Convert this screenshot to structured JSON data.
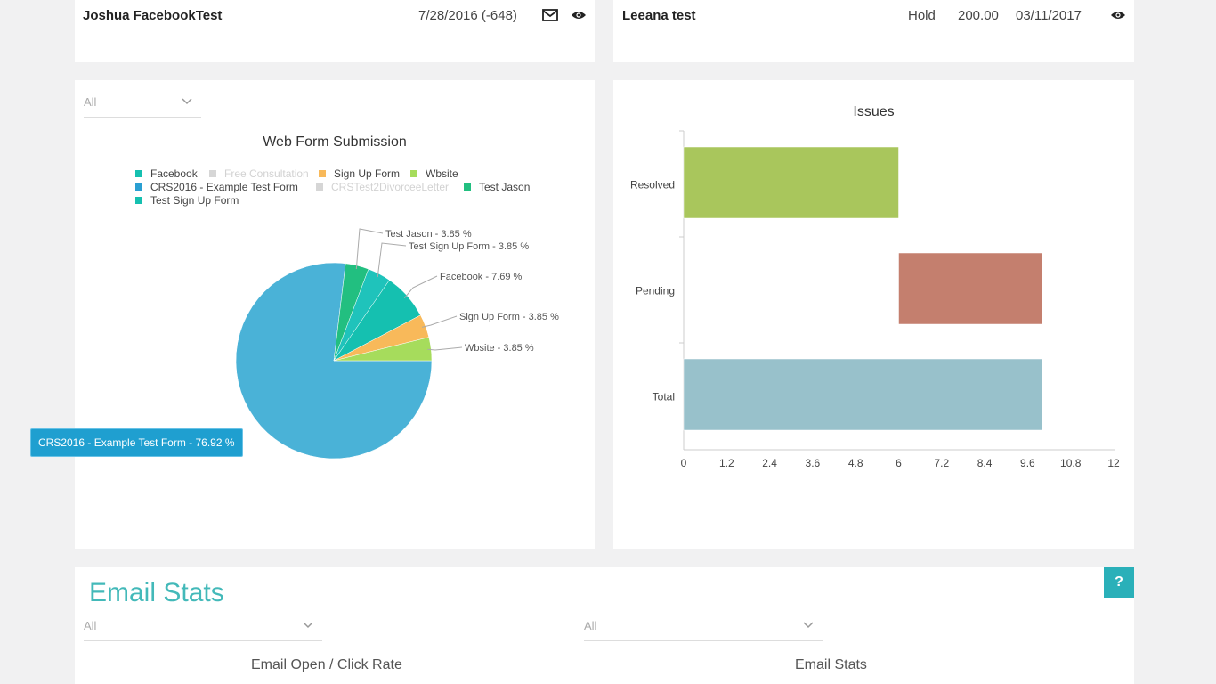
{
  "top_rows": {
    "left": {
      "name": "Joshua FacebookTest",
      "date": "7/28/2016 (-648)",
      "icons": [
        "envelope-icon",
        "eye-icon"
      ]
    },
    "right": {
      "name": "Leeana test",
      "status": "Hold",
      "amount": "200.00",
      "date": "03/11/2017",
      "icons": [
        "eye-icon"
      ]
    }
  },
  "webform_panel": {
    "filter": {
      "value": "All",
      "icon": "chevron-down-icon"
    },
    "tooltip": "CRS2016 - Example Test Form - 76.92 %"
  },
  "issues_panel": {},
  "email_stats": {
    "title": "Email Stats",
    "help_label": "?",
    "filter_left": "All",
    "filter_right": "All",
    "left_chart_title": "Email Open / Click Rate",
    "right_chart_title": "Email Stats"
  },
  "chart_data": [
    {
      "type": "pie",
      "title": "Web Form Submission",
      "legend": [
        {
          "name": "Facebook",
          "color": "#15c0b0",
          "enabled": true
        },
        {
          "name": "Free Consultation",
          "color": "#d6d6d6",
          "enabled": false
        },
        {
          "name": "Sign Up Form",
          "color": "#f8b95a",
          "enabled": true
        },
        {
          "name": "Wbsite",
          "color": "#a6dc5c",
          "enabled": true
        },
        {
          "name": "CRS2016 - Example Test Form",
          "color": "#2a9fd2",
          "enabled": true
        },
        {
          "name": "CRSTest2DivorceeLetter",
          "color": "#d6d6d6",
          "enabled": false
        },
        {
          "name": "Test Jason",
          "color": "#22bf80",
          "enabled": true
        },
        {
          "name": "Test Sign Up Form",
          "color": "#15c0b0",
          "enabled": true
        }
      ],
      "slices": [
        {
          "name": "CRS2016 - Example Test Form",
          "value": 76.92,
          "color": "#4ab2d7",
          "label": ""
        },
        {
          "name": "Test Jason",
          "value": 3.85,
          "color": "#22bf80",
          "label": "Test Jason - 3.85 %"
        },
        {
          "name": "Test Sign Up Form",
          "value": 3.85,
          "color": "#1fc3bb",
          "label": "Test Sign Up Form - 3.85 %"
        },
        {
          "name": "Facebook",
          "value": 7.69,
          "color": "#15c0b0",
          "label": "Facebook - 7.69 %"
        },
        {
          "name": "Sign Up Form",
          "value": 3.85,
          "color": "#f8b95a",
          "label": "Sign Up Form - 3.85 %"
        },
        {
          "name": "Wbsite",
          "value": 3.85,
          "color": "#a6dc5c",
          "label": "Wbsite - 3.85 %"
        }
      ]
    },
    {
      "type": "bar",
      "orientation": "horizontal",
      "title": "Issues",
      "categories": [
        "Resolved",
        "Pending",
        "Total"
      ],
      "bars": [
        {
          "category": "Resolved",
          "start": 0,
          "end": 6,
          "color": "#a9c65c"
        },
        {
          "category": "Pending",
          "start": 6,
          "end": 10,
          "color": "#c47f6e"
        },
        {
          "category": "Total",
          "start": 0,
          "end": 10,
          "color": "#98c1cb"
        }
      ],
      "xlim": [
        0,
        12
      ],
      "xticks": [
        "0",
        "1.2",
        "2.4",
        "3.6",
        "4.8",
        "6",
        "7.2",
        "8.4",
        "9.6",
        "10.8",
        "12"
      ]
    }
  ]
}
